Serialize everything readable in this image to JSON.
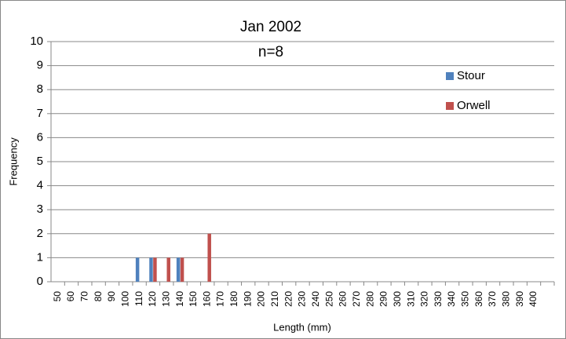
{
  "chart_data": {
    "type": "bar",
    "title": "Jan 2002",
    "subtitle": "n=8",
    "x_label": "Length (mm)",
    "y_label": "Frequency",
    "categories": [
      "50",
      "60",
      "70",
      "80",
      "90",
      "100",
      "110",
      "120",
      "130",
      "140",
      "150",
      "160",
      "170",
      "180",
      "190",
      "200",
      "210",
      "220",
      "230",
      "240",
      "250",
      "260",
      "270",
      "280",
      "290",
      "300",
      "310",
      "320",
      "330",
      "340",
      "350",
      "360",
      "370",
      "380",
      "390",
      "400",
      null
    ],
    "series": [
      {
        "name": "Stour",
        "color": "#4f81bd",
        "values": [
          0,
          0,
          0,
          0,
          0,
          0,
          1,
          1,
          0,
          1,
          0,
          0,
          0,
          0,
          0,
          0,
          0,
          0,
          0,
          0,
          0,
          0,
          0,
          0,
          0,
          0,
          0,
          0,
          0,
          0,
          0,
          0,
          0,
          0,
          0,
          0,
          0
        ]
      },
      {
        "name": "Orwell",
        "color": "#c0504d",
        "values": [
          0,
          0,
          0,
          0,
          0,
          0,
          0,
          1,
          1,
          1,
          0,
          2,
          0,
          0,
          0,
          0,
          0,
          0,
          0,
          0,
          0,
          0,
          0,
          0,
          0,
          0,
          0,
          0,
          0,
          0,
          0,
          0,
          0,
          0,
          0,
          0,
          0
        ]
      }
    ],
    "ylim": [
      0,
      10
    ],
    "yticks": [
      0,
      1,
      2,
      3,
      4,
      5,
      6,
      7,
      8,
      9,
      10
    ],
    "grid": true,
    "legend": "right"
  }
}
